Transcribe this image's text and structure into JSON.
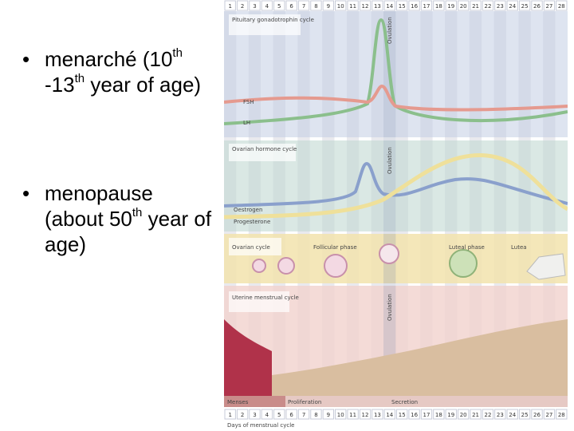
{
  "bullets": [
    {
      "parts": [
        "menarché (10",
        "th",
        " -13",
        "th",
        " year of age)"
      ]
    },
    {
      "parts": [
        "menopause (about 50",
        "th",
        " year of age)"
      ]
    }
  ],
  "diagram": {
    "days": [
      1,
      2,
      3,
      4,
      5,
      6,
      7,
      8,
      9,
      10,
      11,
      12,
      13,
      14,
      15,
      16,
      17,
      18,
      19,
      20,
      21,
      22,
      23,
      24,
      25,
      26,
      27,
      28
    ],
    "pituitary_title": "Pituitary gonadotrophin cycle",
    "ovulation": "Ovulation",
    "fsh": "FSH",
    "lh": "LH",
    "ovarian_hormone_title": "Ovarian hormone cycle",
    "oestrogen": "Oestrogen",
    "progesterone": "Progesterone",
    "ovarian_cycle_title": "Ovarian cycle",
    "follicular": "Follicular phase",
    "luteal": "Luteal phase",
    "lutea": "Lutea",
    "uterine_title": "Uterine menstrual cycle",
    "menses": "Menses",
    "proliferation": "Proliferation",
    "secretion": "Secretion",
    "caption": "Days of menstrual cycle"
  }
}
